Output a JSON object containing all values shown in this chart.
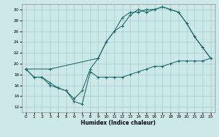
{
  "xlabel": "Humidex (Indice chaleur)",
  "xlim": [
    -0.5,
    23.5
  ],
  "ylim": [
    11,
    31
  ],
  "yticks": [
    12,
    14,
    16,
    18,
    20,
    22,
    24,
    26,
    28,
    30
  ],
  "xticks": [
    0,
    1,
    2,
    3,
    4,
    5,
    6,
    7,
    8,
    9,
    10,
    11,
    12,
    13,
    14,
    15,
    16,
    17,
    18,
    19,
    20,
    21,
    22,
    23
  ],
  "bg_color": "#cce8e8",
  "grid_color": "#aacece",
  "line_color": "#1a6b6b",
  "line1_x": [
    0,
    1,
    2,
    3,
    4,
    5,
    6,
    7,
    8,
    9,
    10,
    11,
    12,
    13,
    14,
    15,
    16,
    17,
    18,
    19,
    20,
    21,
    22,
    23
  ],
  "line1_y": [
    19,
    17.5,
    17.5,
    16.5,
    15.5,
    15,
    13,
    12.5,
    18.5,
    17.5,
    17.5,
    17.5,
    17.5,
    18,
    18.5,
    19,
    19.5,
    19.5,
    20,
    20.5,
    20.5,
    20.5,
    20.5,
    21
  ],
  "line2_x": [
    0,
    1,
    2,
    3,
    4,
    5,
    6,
    7,
    8,
    9,
    10,
    11,
    12,
    13,
    14,
    15,
    16,
    17,
    18,
    19,
    20,
    21,
    22,
    23
  ],
  "line2_y": [
    19,
    17.5,
    17.5,
    16,
    15.5,
    15,
    13.5,
    15,
    19,
    21,
    24,
    26,
    28.5,
    29.5,
    29.5,
    30,
    30,
    30.5,
    30,
    29.5,
    27.5,
    25,
    23,
    21
  ],
  "line3_x": [
    0,
    3,
    9,
    10,
    11,
    12,
    13,
    14,
    15,
    16,
    17,
    18,
    19,
    20,
    21,
    22,
    23
  ],
  "line3_y": [
    19,
    19,
    21,
    24,
    26,
    27,
    29,
    30,
    29.5,
    30,
    30.5,
    30,
    29.5,
    27.5,
    25,
    23,
    21
  ]
}
